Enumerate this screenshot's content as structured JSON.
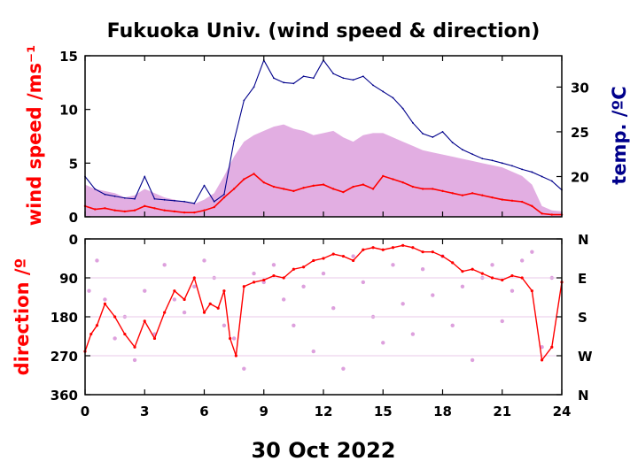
{
  "chart_data": [
    {
      "type": "line",
      "title": "Fukuoka Univ. (wind speed & direction)",
      "ylabel": "wind speed /ms⁻¹",
      "y2label": "temp. /ºC",
      "xlabel": "30 Oct 2022",
      "xlim": [
        0,
        24
      ],
      "ylim": [
        0,
        15
      ],
      "y2lim": [
        15.5,
        33.5
      ],
      "xticks": [
        "0",
        "3",
        "6",
        "9",
        "12",
        "15",
        "18",
        "21",
        "24"
      ],
      "yticks": [
        "0",
        "5",
        "10",
        "15"
      ],
      "y2ticks": [
        "20",
        "25",
        "30"
      ],
      "colors": {
        "gust": "#dda0dd",
        "mean": "#ff0000",
        "temp": "#00008b",
        "ylabel": "#ff0000",
        "y2label": "#00008b"
      },
      "series": [
        {
          "name": "",
          "role": "gust",
          "x": [
            0,
            0.5,
            1,
            1.5,
            2,
            2.5,
            3,
            3.5,
            4,
            4.5,
            5,
            5.5,
            6,
            6.5,
            7,
            7.5,
            8,
            8.5,
            9,
            9.5,
            10,
            10.5,
            11,
            11.5,
            12,
            12.5,
            13,
            13.5,
            14,
            14.5,
            15,
            15.5,
            16,
            16.5,
            17,
            17.5,
            18,
            18.5,
            19,
            19.5,
            20,
            20.5,
            21,
            21.5,
            22,
            22.5,
            23,
            23.5,
            24
          ],
          "values": [
            3.0,
            2.6,
            2.4,
            2.2,
            1.8,
            2.0,
            2.6,
            2.2,
            1.8,
            1.6,
            1.4,
            1.2,
            1.6,
            2.2,
            3.8,
            5.6,
            7.0,
            7.6,
            8.0,
            8.4,
            8.6,
            8.2,
            8.0,
            7.6,
            7.8,
            8.0,
            7.4,
            7.0,
            7.6,
            7.8,
            7.8,
            7.4,
            7.0,
            6.6,
            6.2,
            6.0,
            5.8,
            5.6,
            5.4,
            5.2,
            5.0,
            4.8,
            4.6,
            4.2,
            3.8,
            3.0,
            1.0,
            0.6,
            0.5
          ]
        },
        {
          "name": "",
          "role": "mean",
          "x": [
            0,
            0.5,
            1,
            1.5,
            2,
            2.5,
            3,
            3.5,
            4,
            4.5,
            5,
            5.5,
            6,
            6.5,
            7,
            7.5,
            8,
            8.5,
            9,
            9.5,
            10,
            10.5,
            11,
            11.5,
            12,
            12.5,
            13,
            13.5,
            14,
            14.5,
            15,
            15.5,
            16,
            16.5,
            17,
            17.5,
            18,
            18.5,
            19,
            19.5,
            20,
            20.5,
            21,
            21.5,
            22,
            22.5,
            23,
            23.5,
            24
          ],
          "values": [
            1.0,
            0.7,
            0.8,
            0.6,
            0.5,
            0.6,
            1.0,
            0.8,
            0.6,
            0.5,
            0.4,
            0.4,
            0.6,
            0.9,
            1.8,
            2.6,
            3.5,
            4.0,
            3.2,
            2.8,
            2.6,
            2.4,
            2.7,
            2.9,
            3.0,
            2.6,
            2.3,
            2.8,
            3.0,
            2.6,
            3.8,
            3.5,
            3.2,
            2.8,
            2.6,
            2.6,
            2.4,
            2.2,
            2.0,
            2.2,
            2.0,
            1.8,
            1.6,
            1.5,
            1.4,
            1.0,
            0.3,
            0.2,
            0.2
          ]
        },
        {
          "name": "",
          "role": "temp",
          "axis": "y2",
          "x": [
            0,
            0.5,
            1,
            1.5,
            2,
            2.5,
            3,
            3.5,
            4,
            4.5,
            5,
            5.5,
            6,
            6.5,
            7,
            7.5,
            8,
            8.5,
            9,
            9.5,
            10,
            10.5,
            11,
            11.5,
            12,
            12.5,
            13,
            13.5,
            14,
            14.5,
            15,
            15.5,
            16,
            16.5,
            17,
            17.5,
            18,
            18.5,
            19,
            19.5,
            20,
            20.5,
            21,
            21.5,
            22,
            22.5,
            23,
            23.5,
            24
          ],
          "values": [
            20.0,
            18.6,
            18.0,
            17.8,
            17.6,
            17.5,
            20.0,
            17.5,
            17.4,
            17.3,
            17.2,
            17.0,
            19.0,
            17.2,
            18.0,
            24.0,
            28.5,
            30.0,
            33.0,
            31.0,
            30.5,
            30.4,
            31.2,
            31.0,
            33.0,
            31.5,
            31.0,
            30.8,
            31.2,
            30.2,
            29.5,
            28.8,
            27.6,
            26.0,
            24.8,
            24.4,
            25.0,
            23.8,
            23.0,
            22.5,
            22.0,
            21.8,
            21.5,
            21.2,
            20.8,
            20.5,
            20.0,
            19.5,
            18.5
          ]
        }
      ]
    },
    {
      "type": "scatter",
      "xlabel": "30 Oct 2022",
      "ylabel": "direction /º",
      "xlim": [
        0,
        24
      ],
      "ylim": [
        360,
        0
      ],
      "xticks": [
        "0",
        "3",
        "6",
        "9",
        "12",
        "15",
        "18",
        "21",
        "24"
      ],
      "yticks": [
        "0",
        "90",
        "180",
        "270",
        "360"
      ],
      "y2ticks": [
        "N",
        "E",
        "S",
        "W",
        "N"
      ],
      "colors": {
        "gust": "#dda0dd",
        "mean": "#ff0000",
        "ylabel": "#ff0000"
      },
      "series": [
        {
          "name": "",
          "role": "gust",
          "x": [
            0.2,
            0.6,
            1.0,
            1.5,
            2.0,
            2.5,
            3.0,
            3.5,
            4.0,
            4.5,
            5.0,
            5.5,
            6.0,
            6.5,
            7.0,
            7.5,
            8.0,
            8.5,
            9.0,
            9.5,
            10.0,
            10.5,
            11.0,
            11.5,
            12.0,
            12.5,
            13.0,
            13.5,
            14.0,
            14.5,
            15.0,
            15.5,
            16.0,
            16.5,
            17.0,
            17.5,
            18.0,
            18.5,
            19.0,
            19.5,
            20.0,
            20.5,
            21.0,
            21.5,
            22.0,
            22.5,
            23.0,
            23.5
          ],
          "values": [
            120,
            50,
            140,
            230,
            180,
            280,
            120,
            220,
            60,
            140,
            170,
            110,
            50,
            90,
            200,
            230,
            300,
            80,
            100,
            60,
            140,
            200,
            110,
            260,
            80,
            160,
            300,
            40,
            100,
            180,
            240,
            60,
            150,
            220,
            70,
            130,
            40,
            200,
            110,
            280,
            90,
            60,
            190,
            120,
            50,
            30,
            250,
            90
          ]
        },
        {
          "name": "",
          "role": "mean",
          "x": [
            0,
            0.3,
            0.6,
            1.0,
            1.5,
            2.0,
            2.5,
            3.0,
            3.5,
            4.0,
            4.5,
            5.0,
            5.5,
            6.0,
            6.3,
            6.7,
            7.0,
            7.3,
            7.6,
            8.0,
            8.5,
            9.0,
            9.5,
            10.0,
            10.5,
            11.0,
            11.5,
            12.0,
            12.5,
            13.0,
            13.5,
            14.0,
            14.5,
            15.0,
            15.5,
            16.0,
            16.5,
            17.0,
            17.5,
            18.0,
            18.5,
            19.0,
            19.5,
            20.0,
            20.5,
            21.0,
            21.5,
            22.0,
            22.5,
            23.0,
            23.5,
            24.0
          ],
          "values": [
            260,
            220,
            200,
            150,
            180,
            220,
            250,
            190,
            230,
            170,
            120,
            140,
            90,
            170,
            150,
            160,
            120,
            230,
            270,
            110,
            100,
            95,
            85,
            90,
            70,
            65,
            50,
            45,
            35,
            40,
            50,
            25,
            20,
            25,
            20,
            15,
            20,
            30,
            30,
            40,
            55,
            75,
            70,
            80,
            90,
            95,
            85,
            90,
            120,
            280,
            250,
            100
          ]
        }
      ]
    }
  ]
}
